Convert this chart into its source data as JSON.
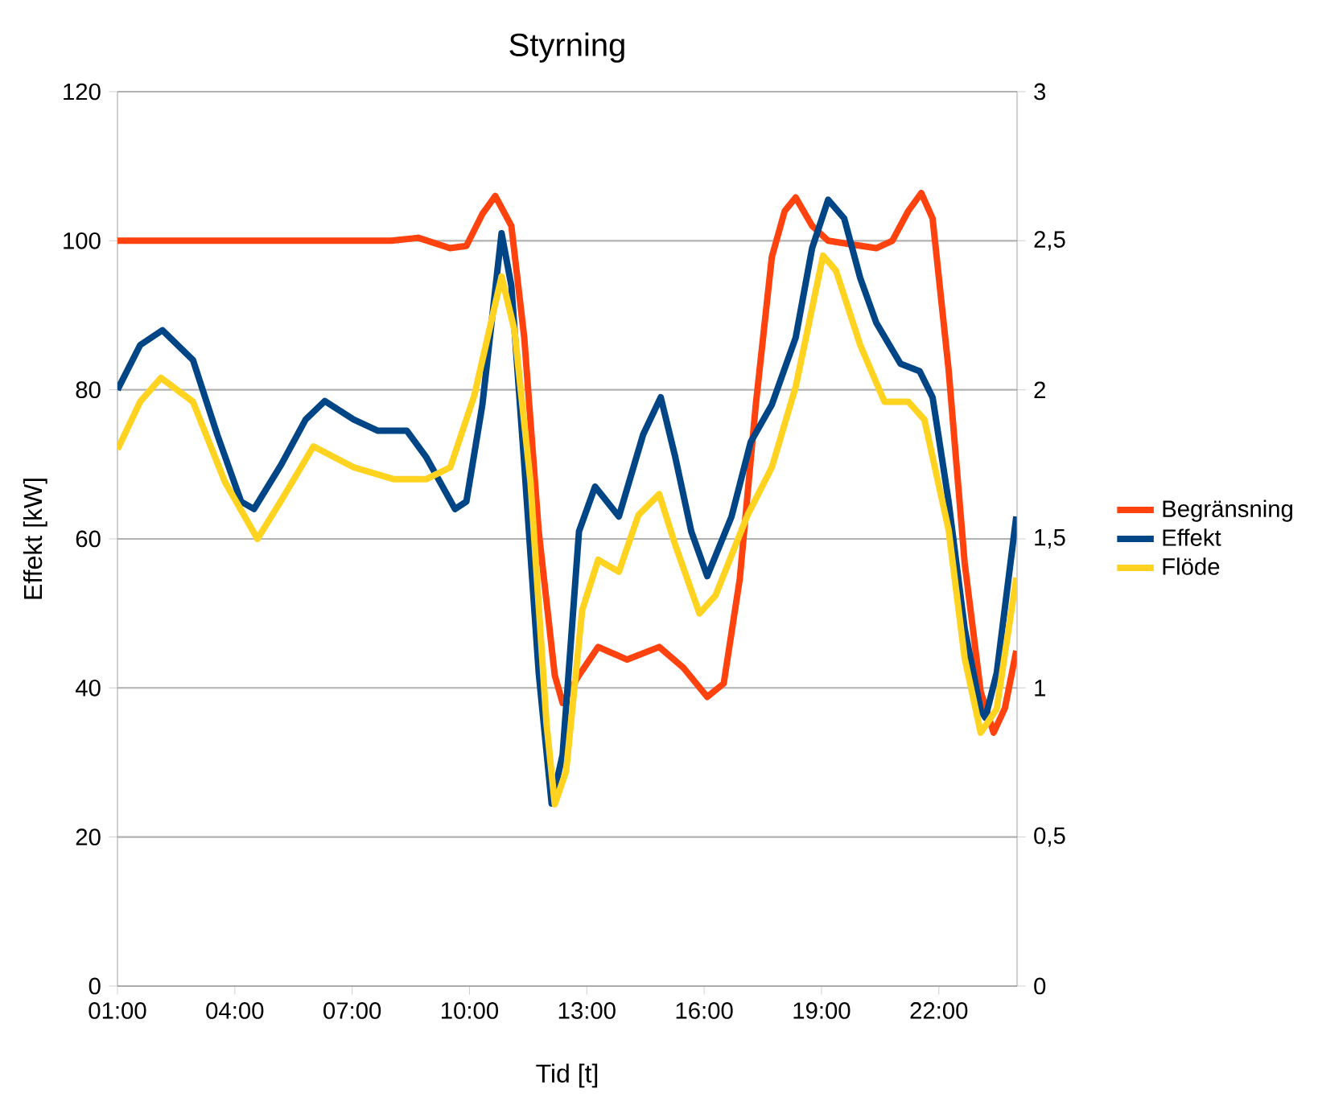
{
  "chart_data": {
    "type": "line",
    "title": "Styrning",
    "xlabel": "Tid [t]",
    "ylabel": "Effekt [kW]",
    "xlim": [
      1,
      24
    ],
    "xticks": [
      {
        "value": 1,
        "label": "01:00"
      },
      {
        "value": 4,
        "label": "04:00"
      },
      {
        "value": 7,
        "label": "07:00"
      },
      {
        "value": 10,
        "label": "10:00"
      },
      {
        "value": 13,
        "label": "13:00"
      },
      {
        "value": 16,
        "label": "16:00"
      },
      {
        "value": 19,
        "label": "19:00"
      },
      {
        "value": 22,
        "label": "22:00"
      }
    ],
    "ylim": [
      0,
      120
    ],
    "yticks": [
      0,
      20,
      40,
      60,
      80,
      100,
      120
    ],
    "y2lim": [
      0,
      3
    ],
    "y2ticks": [
      0,
      {
        "value": 0.5,
        "label": "0,5"
      },
      1,
      {
        "value": 1.5,
        "label": "1,5"
      },
      2,
      {
        "value": 2.5,
        "label": "2,5"
      },
      3
    ],
    "grid": "y",
    "legend": "right",
    "marker": "none",
    "line_style": "solid",
    "series": [
      {
        "name": "Begränsning",
        "color": "#ff420e",
        "x": [
          1,
          3,
          5,
          7,
          8.0,
          8.69,
          9.5,
          9.92,
          10.33,
          10.66,
          11.07,
          11.4,
          11.77,
          12.18,
          12.38,
          12.8,
          13.29,
          14.03,
          14.85,
          15.47,
          16.08,
          16.5,
          16.91,
          17.32,
          17.73,
          18.06,
          18.34,
          18.76,
          19.17,
          19.78,
          20.4,
          20.81,
          21.22,
          21.55,
          21.84,
          22.25,
          22.66,
          23.07,
          23.4,
          23.69,
          23.98
        ],
        "values": [
          100,
          100,
          100,
          100,
          100,
          100.4,
          99,
          99.3,
          103.6,
          106,
          102,
          87,
          61,
          41.7,
          38,
          41.7,
          45.5,
          43.8,
          45.5,
          42.7,
          38.8,
          40.6,
          54.6,
          78,
          97.8,
          104,
          105.8,
          102,
          100,
          99.5,
          99,
          100,
          104,
          106.4,
          103,
          82.7,
          56.8,
          39.5,
          34,
          37.3,
          45
        ]
      },
      {
        "name": "Effekt",
        "color": "#004586",
        "x": [
          1.0,
          1.58,
          2.15,
          2.93,
          3.55,
          4.16,
          4.49,
          5.19,
          5.81,
          6.3,
          7.04,
          7.66,
          8.4,
          8.89,
          9.63,
          9.92,
          10.33,
          10.82,
          11.07,
          11.4,
          11.77,
          12.1,
          12.38,
          12.8,
          13.21,
          13.82,
          14.44,
          14.89,
          15.26,
          15.67,
          16.08,
          16.7,
          17.19,
          17.73,
          18.34,
          18.76,
          19.17,
          19.58,
          19.99,
          20.4,
          21.02,
          21.51,
          21.84,
          22.25,
          22.66,
          23.07,
          23.19,
          23.48,
          23.98
        ],
        "values": [
          80,
          86,
          88,
          84,
          74,
          65,
          64,
          70,
          76,
          78.5,
          76,
          74.5,
          74.5,
          71,
          64,
          65,
          78,
          101,
          94,
          70,
          42,
          24.5,
          31,
          61,
          67,
          63,
          74,
          79,
          71,
          61,
          55,
          63,
          73,
          78,
          87,
          99,
          105.5,
          103,
          95,
          89,
          83.5,
          82.5,
          79,
          65,
          48,
          37,
          36,
          42,
          63
        ]
      },
      {
        "name": "Flöde",
        "color": "#ffd320",
        "axis": "y2",
        "x": [
          1.0,
          1.58,
          2.11,
          2.93,
          3.75,
          4.58,
          5.19,
          6.01,
          7.04,
          8.07,
          8.89,
          9.51,
          10.12,
          10.82,
          11.15,
          11.56,
          11.97,
          12.18,
          12.47,
          12.88,
          13.29,
          13.82,
          14.32,
          14.85,
          15.26,
          15.88,
          16.29,
          17.11,
          17.73,
          18.34,
          19.04,
          19.37,
          19.99,
          20.61,
          21.22,
          21.63,
          22.25,
          22.66,
          23.07,
          23.48,
          23.98
        ],
        "values": [
          1.8,
          1.96,
          2.04,
          1.96,
          1.69,
          1.5,
          1.63,
          1.81,
          1.74,
          1.7,
          1.7,
          1.74,
          1.98,
          2.38,
          2.2,
          1.69,
          0.88,
          0.61,
          0.72,
          1.26,
          1.43,
          1.39,
          1.58,
          1.65,
          1.48,
          1.25,
          1.31,
          1.58,
          1.74,
          2.01,
          2.45,
          2.4,
          2.15,
          1.96,
          1.96,
          1.9,
          1.53,
          1.1,
          0.85,
          0.93,
          1.37
        ]
      }
    ]
  }
}
